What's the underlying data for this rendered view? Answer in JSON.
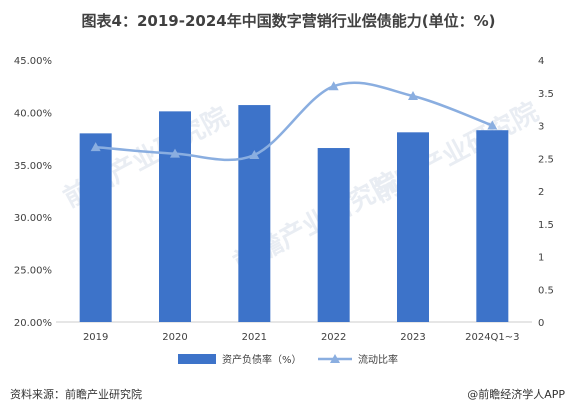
{
  "title": "图表4：2019-2024年中国数字营销行业偿债能力(单位：%)",
  "source": "资料来源：前瞻产业研究院",
  "credit": "@前瞻经济学人APP",
  "watermark": "前瞻产业研究院",
  "colors": {
    "bar": "#3d73c9",
    "line": "#8aaee0",
    "axis": "#cccccc"
  },
  "chart_data": {
    "type": "bar+line",
    "categories": [
      "2019",
      "2020",
      "2021",
      "2022",
      "2023",
      "2024Q1~3"
    ],
    "left_axis": {
      "ylim": [
        20,
        45
      ],
      "ticks": [
        "20.00%",
        "25.00%",
        "30.00%",
        "35.00%",
        "40.00%",
        "45.00%"
      ]
    },
    "right_axis": {
      "ylim": [
        0,
        4
      ],
      "ticks": [
        "0",
        "0.5",
        "1",
        "1.5",
        "2",
        "2.5",
        "3",
        "3.5",
        "4"
      ]
    },
    "series": [
      {
        "name": "资产负债率（%）",
        "type": "bar",
        "axis": "left",
        "values": [
          38.0,
          40.1,
          40.7,
          36.6,
          38.1,
          38.3
        ]
      },
      {
        "name": "流动比率",
        "type": "line",
        "axis": "right",
        "values": [
          2.67,
          2.57,
          2.55,
          3.6,
          3.45,
          3.0
        ]
      }
    ],
    "legend": "bottom"
  }
}
